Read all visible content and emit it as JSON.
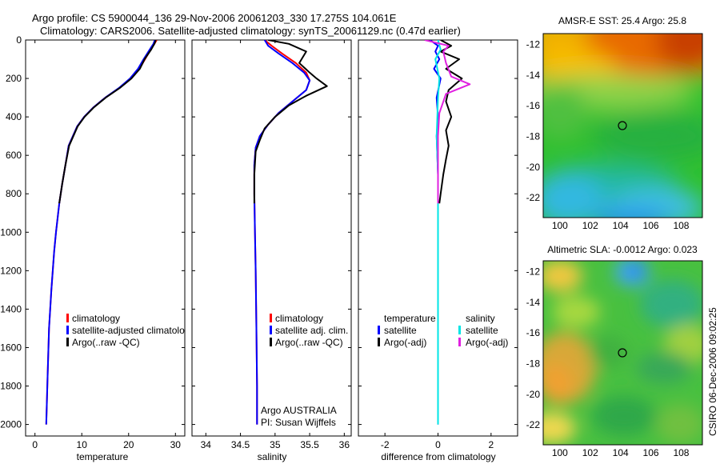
{
  "title": {
    "line1": "Argo profile: CS 5900044_136 29-Nov-2006 20061203_330 17.275S 104.061E",
    "line2": "Climatology: CARS2006. Satellite-adjusted climatology: synTS_20061129.nc (0.47d earlier)"
  },
  "colors": {
    "climatology": "#ff0000",
    "satellite": "#0000ff",
    "argo": "#000000",
    "cyan": "#00e5e5",
    "magenta": "#e020e0"
  },
  "depth_axis": {
    "ticks": [
      0,
      200,
      400,
      600,
      800,
      1000,
      1200,
      1400,
      1600,
      1800,
      2000
    ],
    "range": [
      0,
      2060
    ]
  },
  "chart_data": [
    {
      "type": "line",
      "id": "temperature",
      "xlabel": "temperature",
      "xlim": [
        -2,
        32
      ],
      "xticks": [
        0,
        10,
        20,
        30
      ],
      "ylim": [
        0,
        2060
      ],
      "legend": [
        "climatology",
        "satellite-adjusted climatology",
        "Argo(..raw -QC)"
      ],
      "series": [
        {
          "name": "climatology",
          "color": "red",
          "x": [
            26.0,
            25.5,
            24.7,
            23.5,
            22.3,
            20.5,
            18.0,
            15.0,
            12.5,
            10.5,
            9.0,
            7.2,
            6.5,
            5.8,
            5.2,
            4.5,
            4.1,
            3.5,
            3.0,
            2.7,
            2.4
          ],
          "y": [
            0,
            20,
            50,
            100,
            150,
            200,
            250,
            300,
            350,
            400,
            450,
            550,
            650,
            750,
            850,
            1000,
            1100,
            1300,
            1500,
            1750,
            2000
          ]
        },
        {
          "name": "satellite-adjusted climatology",
          "color": "blue",
          "x": [
            25.6,
            25.3,
            24.5,
            23.2,
            22.0,
            20.3,
            17.9,
            15.0,
            12.5,
            10.5,
            9.0,
            7.2,
            6.5,
            5.8,
            5.2,
            4.5,
            4.1,
            3.5,
            3.0,
            2.7,
            2.4
          ],
          "y": [
            0,
            20,
            50,
            100,
            150,
            200,
            250,
            300,
            350,
            400,
            450,
            550,
            650,
            750,
            850,
            1000,
            1100,
            1300,
            1500,
            1750,
            2000
          ]
        },
        {
          "name": "Argo(..raw -QC)",
          "color": "black",
          "x": [
            25.8,
            25.5,
            24.8,
            23.4,
            22.4,
            20.6,
            18.1,
            15.1,
            12.6,
            10.6,
            9.1,
            7.3,
            6.5,
            5.8,
            5.2
          ],
          "y": [
            0,
            20,
            50,
            100,
            150,
            200,
            250,
            300,
            350,
            400,
            450,
            550,
            650,
            750,
            850
          ]
        }
      ]
    },
    {
      "type": "line",
      "id": "salinity",
      "xlabel": "salinity",
      "xlim": [
        33.8,
        36.1
      ],
      "xticks": [
        34,
        34.5,
        35,
        35.5,
        36
      ],
      "ylim": [
        0,
        2060
      ],
      "legend": [
        "climatology",
        "satellite adj. clim.",
        "Argo(..raw -QC)"
      ],
      "annotations": [
        "Argo AUSTRALIA",
        "PI: Susan Wijffels"
      ],
      "series": [
        {
          "name": "climatology",
          "color": "red",
          "x": [
            34.85,
            34.95,
            35.1,
            35.3,
            35.45,
            35.5,
            35.45,
            35.25,
            35.05,
            34.9,
            34.78,
            34.72,
            34.7,
            34.7,
            34.71,
            34.72,
            34.73,
            34.74,
            34.74
          ],
          "y": [
            0,
            30,
            70,
            120,
            170,
            210,
            260,
            320,
            380,
            440,
            500,
            560,
            650,
            800,
            1000,
            1200,
            1500,
            1800,
            2000
          ]
        },
        {
          "name": "satellite adj. clim.",
          "color": "blue",
          "x": [
            34.85,
            34.9,
            35.05,
            35.25,
            35.42,
            35.5,
            35.45,
            35.25,
            35.05,
            34.9,
            34.78,
            34.72,
            34.7,
            34.7,
            34.71,
            34.72,
            34.73,
            34.74,
            34.74
          ],
          "y": [
            0,
            30,
            70,
            120,
            170,
            210,
            260,
            320,
            380,
            440,
            500,
            560,
            650,
            800,
            1000,
            1200,
            1500,
            1800,
            2000
          ]
        },
        {
          "name": "Argo(..raw -QC)",
          "color": "black",
          "x": [
            34.9,
            35.2,
            35.45,
            35.4,
            35.35,
            35.5,
            35.6,
            35.75,
            35.45,
            35.2,
            35.0,
            34.85,
            34.78,
            34.72,
            34.7,
            34.7
          ],
          "y": [
            0,
            20,
            60,
            90,
            120,
            170,
            200,
            240,
            290,
            340,
            400,
            460,
            520,
            580,
            700,
            850
          ]
        }
      ]
    },
    {
      "type": "line",
      "id": "difference",
      "xlabel": "difference from climatology",
      "xlim": [
        -3,
        3
      ],
      "xticks": [
        -2,
        0,
        2
      ],
      "ylim": [
        0,
        2060
      ],
      "legend": [
        "temperature",
        "satellite",
        "Argo(-adj)",
        "salinity",
        "satellite",
        "Argo(-adj)"
      ],
      "series": [
        {
          "name": "temperature satellite",
          "color": "blue",
          "x": [
            -0.3,
            0.0,
            -0.1,
            0.05,
            -0.15,
            0.1,
            -0.05,
            0.0,
            -0.05,
            0.0,
            0.0,
            0.0,
            0.0
          ],
          "y": [
            0,
            30,
            60,
            100,
            150,
            200,
            300,
            400,
            500,
            700,
            1000,
            1500,
            2000
          ]
        },
        {
          "name": "temperature Argo(-adj)",
          "color": "black",
          "x": [
            0.1,
            0.5,
            0.1,
            0.8,
            0.3,
            0.9,
            0.4,
            0.3,
            0.5,
            0.3,
            0.4,
            0.3,
            0.2,
            0.1,
            0.05
          ],
          "y": [
            0,
            30,
            60,
            100,
            150,
            200,
            260,
            320,
            400,
            470,
            550,
            620,
            700,
            800,
            850
          ]
        },
        {
          "name": "salinity satellite",
          "color": "cyan",
          "x": [
            0.0,
            0.1,
            -0.1,
            0.05,
            0.0,
            -0.05,
            0.0,
            0.0,
            0.0,
            0.0
          ],
          "y": [
            0,
            50,
            100,
            200,
            300,
            500,
            700,
            1000,
            1500,
            2000
          ]
        },
        {
          "name": "salinity Argo(-adj)",
          "color": "magenta",
          "x": [
            -0.5,
            0.4,
            0.2,
            0.3,
            0.5,
            1.2,
            0.3,
            0.05,
            0.0,
            0.0,
            0.0
          ],
          "y": [
            0,
            30,
            60,
            120,
            190,
            230,
            280,
            380,
            500,
            700,
            850
          ]
        }
      ]
    },
    {
      "type": "heatmap",
      "id": "sst-map",
      "title": "AMSR-E SST: 25.4 Argo: 25.8",
      "xticks": [
        100,
        102,
        104,
        106,
        108
      ],
      "yticks": [
        -12,
        -14,
        -16,
        -18,
        -20,
        -22
      ],
      "xlim": [
        98.9,
        109.4
      ],
      "ylim": [
        -23.3,
        -11.3
      ],
      "marker": {
        "lon": 104.061,
        "lat": -17.275
      }
    },
    {
      "type": "heatmap",
      "id": "sla-map",
      "title": "Altimetric SLA: -0.0012 Argo: 0.023",
      "xticks": [
        100,
        102,
        104,
        106,
        108
      ],
      "yticks": [
        -12,
        -14,
        -16,
        -18,
        -20,
        -22
      ],
      "xlim": [
        98.9,
        109.4
      ],
      "ylim": [
        -23.3,
        -11.3
      ],
      "marker": {
        "lon": 104.061,
        "lat": -17.275
      }
    }
  ],
  "stamp": "CSIRO 06-Dec-2006 09:02:25"
}
